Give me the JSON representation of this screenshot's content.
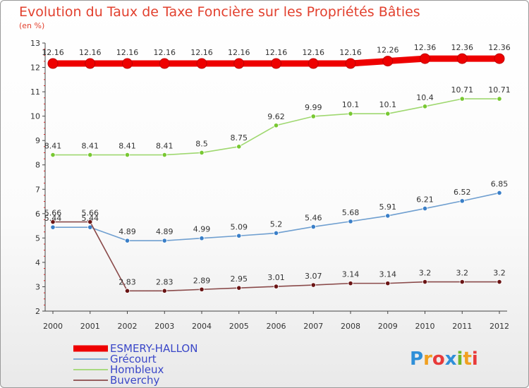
{
  "chart_data": {
    "type": "line",
    "title": "Evolution du Taux de Taxe Foncière sur les Propriétés Bâties",
    "subtitle": "(en %)",
    "x": [
      "2000",
      "2001",
      "2002",
      "2003",
      "2004",
      "2005",
      "2006",
      "2007",
      "2008",
      "2009",
      "2010",
      "2011",
      "2012"
    ],
    "ylim": [
      2,
      13
    ],
    "yticks": [
      "2",
      "3",
      "4",
      "5",
      "6",
      "7",
      "8",
      "9",
      "10",
      "11",
      "12",
      "13"
    ],
    "grid": false,
    "legend_position": "bottom-left",
    "series": [
      {
        "name": "ESMERY-HALLON",
        "color": "#ee0000",
        "values": [
          12.16,
          12.16,
          12.16,
          12.16,
          12.16,
          12.16,
          12.16,
          12.16,
          12.16,
          12.26,
          12.36,
          12.36,
          12.36
        ],
        "labels": [
          "12.16",
          "12.16",
          "12.16",
          "12.16",
          "12.16",
          "12.16",
          "12.16",
          "12.16",
          "12.16",
          "12.26",
          "12.36",
          "12.36",
          "12.36"
        ]
      },
      {
        "name": "Grécourt",
        "color": "#6f9fd0",
        "marker": "#3a7fc8",
        "values": [
          5.44,
          5.44,
          4.89,
          4.89,
          4.99,
          5.09,
          5.2,
          5.46,
          5.68,
          5.91,
          6.21,
          6.52,
          6.85
        ],
        "labels": [
          "5.44",
          "5.44",
          "4.89",
          "4.89",
          "4.99",
          "5.09",
          "5.2",
          "5.46",
          "5.68",
          "5.91",
          "6.21",
          "6.52",
          "6.85"
        ]
      },
      {
        "name": "Hombleux",
        "color": "#9fd870",
        "marker": "#78c832",
        "values": [
          8.41,
          8.41,
          8.41,
          8.41,
          8.5,
          8.75,
          9.62,
          9.99,
          10.1,
          10.1,
          10.4,
          10.71,
          10.71
        ],
        "labels": [
          "8.41",
          "8.41",
          "8.41",
          "8.41",
          "8.5",
          "8.75",
          "9.62",
          "9.99",
          "10.1",
          "10.1",
          "10.4",
          "10.71",
          "10.71"
        ]
      },
      {
        "name": "Buverchy",
        "color": "#8a4a4a",
        "marker": "#6a1414",
        "values": [
          5.66,
          5.66,
          2.83,
          2.83,
          2.89,
          2.95,
          3.01,
          3.07,
          3.14,
          3.14,
          3.2,
          3.2,
          3.2
        ],
        "labels": [
          "5.66",
          "5.66",
          "2.83",
          "2.83",
          "2.89",
          "2.95",
          "3.01",
          "3.07",
          "3.14",
          "3.14",
          "3.2",
          "3.2",
          "3.2"
        ]
      }
    ]
  },
  "logo": {
    "letters": [
      "P",
      "r",
      "o",
      "x",
      "i",
      "t",
      "i"
    ],
    "colors": [
      "#2f8fd8",
      "#f0a020",
      "#e83a3a",
      "#2f8fd8",
      "#70b828",
      "#f0a020",
      "#e83a3a"
    ]
  }
}
